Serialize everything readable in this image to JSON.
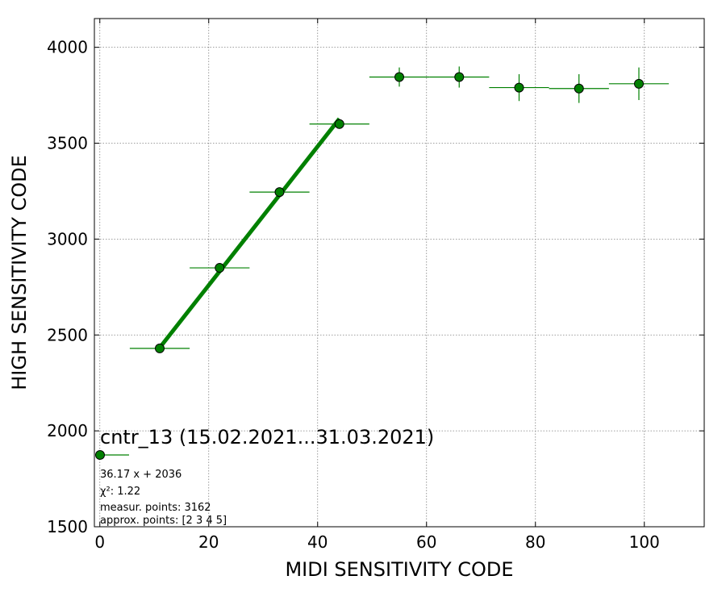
{
  "chart_data": {
    "type": "scatter",
    "xlabel": "MIDI SENSITIVITY CODE",
    "ylabel": "HIGH SENSITIVITY CODE",
    "xlim": [
      -1,
      111
    ],
    "ylim": [
      1500,
      4150
    ],
    "xticks": [
      0,
      20,
      40,
      60,
      80,
      100
    ],
    "yticks": [
      1500,
      2000,
      2500,
      3000,
      3500,
      4000
    ],
    "grid": true,
    "series": [
      {
        "name": "cntr_13 (15.02.2021...31.03.2021)",
        "color": "#008000",
        "points": [
          {
            "x": 11,
            "y": 2430,
            "xerr": 5.5,
            "yerr": 5
          },
          {
            "x": 22,
            "y": 2850,
            "xerr": 5.5,
            "yerr": 8
          },
          {
            "x": 33,
            "y": 3245,
            "xerr": 5.5,
            "yerr": 18
          },
          {
            "x": 44,
            "y": 3600,
            "xerr": 5.5,
            "yerr": 25
          },
          {
            "x": 55,
            "y": 3845,
            "xerr": 5.5,
            "yerr": 50
          },
          {
            "x": 66,
            "y": 3845,
            "xerr": 5.5,
            "yerr": 55
          },
          {
            "x": 77,
            "y": 3790,
            "xerr": 5.5,
            "yerr": 70
          },
          {
            "x": 88,
            "y": 3785,
            "xerr": 5.5,
            "yerr": 75
          },
          {
            "x": 99,
            "y": 3810,
            "xerr": 5.5,
            "yerr": 85
          }
        ]
      }
    ],
    "fit": {
      "slope": 36.17,
      "intercept": 2036,
      "x_range": [
        11,
        44
      ],
      "color": "#008000"
    },
    "legend": {
      "position": "bottom-left",
      "title": "cntr_13 (15.02.2021...31.03.2021)",
      "lines": [
        "36.17 x + 2036",
        "χ²: 1.22",
        "measur. points: 3162",
        "approx. points: [2 3 4 5]"
      ]
    }
  }
}
